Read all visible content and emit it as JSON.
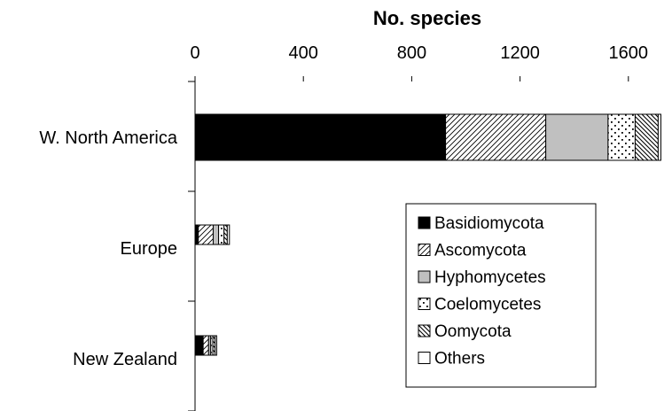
{
  "chart_data": {
    "type": "bar",
    "orientation": "horizontal",
    "stacked": true,
    "title": "",
    "xlabel": "No. species",
    "ylabel": "",
    "xlim": [
      0,
      1720
    ],
    "x_ticks": [
      "0",
      "400",
      "800",
      "1200",
      "1600"
    ],
    "x_tick_values": [
      0,
      400,
      800,
      1200,
      1600
    ],
    "x_axis_position": "top",
    "grid": false,
    "legend_position": "bottom-right",
    "categories": [
      "W. North America",
      "Europe",
      "New Zealand"
    ],
    "series": [
      {
        "name": "Basidiomycota",
        "values": [
          925,
          12,
          30
        ],
        "pattern": "solid-black"
      },
      {
        "name": "Ascomycota",
        "values": [
          370,
          55,
          20
        ],
        "pattern": "diagonal-hatch"
      },
      {
        "name": "Hyphomycetes",
        "values": [
          230,
          20,
          8
        ],
        "pattern": "solid-gray"
      },
      {
        "name": "Coelomycetes",
        "values": [
          100,
          20,
          8
        ],
        "pattern": "dots"
      },
      {
        "name": "Oomycota",
        "values": [
          85,
          12,
          8
        ],
        "pattern": "backslash-hatch"
      },
      {
        "name": "Others",
        "values": [
          10,
          8,
          6
        ],
        "pattern": "white"
      }
    ],
    "colors": {
      "bar_edge": "#000000",
      "gray_fill": "#c0c0c0",
      "axis": "#000000"
    }
  }
}
